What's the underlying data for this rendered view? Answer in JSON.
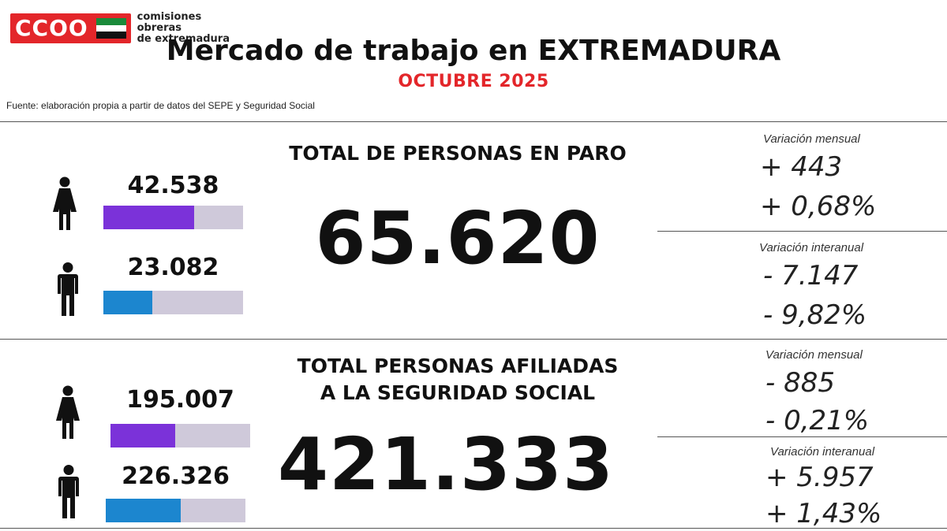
{
  "header": {
    "logo_text": "CCOO",
    "org_line1": "comisiones obreras",
    "org_line2": "de extremadura",
    "title": "Mercado de trabajo en EXTREMADURA",
    "subtitle": "OCTUBRE 2025",
    "source": "Fuente: elaboración propia a partir de datos del SEPE y Seguridad Social"
  },
  "colors": {
    "brand_red": "#e3262a",
    "women_bar": "#7b32d9",
    "men_bar": "#1c86cf",
    "bar_track": "#cfc9da",
    "flag": [
      "#1a8a3a",
      "#ffffff",
      "#111111"
    ]
  },
  "paro": {
    "title": "TOTAL DE PERSONAS EN PARO",
    "total": "65.620",
    "women": {
      "label": "42.538",
      "share": 0.648
    },
    "men": {
      "label": "23.082",
      "share": 0.352
    },
    "monthly": {
      "label": "Variación mensual",
      "abs": "+ 443",
      "pct": "+ 0,68%"
    },
    "yearly": {
      "label": "Variación interanual",
      "abs": "- 7.147",
      "pct": "- 9,82%"
    }
  },
  "afiliados": {
    "title_line1": "TOTAL PERSONAS AFILIADAS",
    "title_line2": "A LA SEGURIDAD SOCIAL",
    "total": "421.333",
    "women": {
      "label": "195.007",
      "share": 0.463
    },
    "men": {
      "label": "226.326",
      "share": 0.537
    },
    "monthly": {
      "label": "Variación mensual",
      "abs": "- 885",
      "pct": "- 0,21%"
    },
    "yearly": {
      "label": "Variación interanual",
      "abs": "+ 5.957",
      "pct": "+ 1,43%"
    }
  }
}
